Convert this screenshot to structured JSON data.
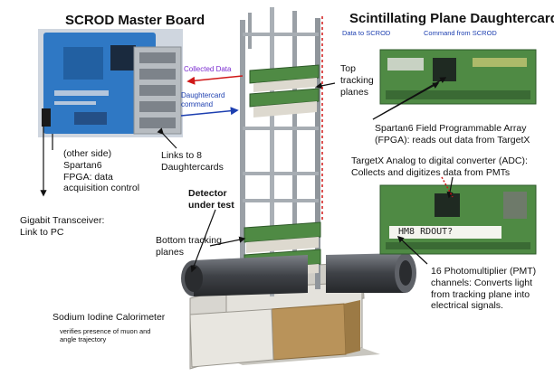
{
  "titles": {
    "master_board": "SCROD Master Board",
    "daughtercard": "Scintillating Plane Daughtercard"
  },
  "labels": {
    "data_to_scrod": "Data to SCROD",
    "command_from_scrod": "Command from SCROD",
    "collected_data": "Collected Data",
    "daughtercard_command": "Daughtercard\ncommand",
    "other_side": "(other side)\nSpartan6\nFPGA: data\nacquisition control",
    "gigabit": "Gigabit Transceiver:\nLink to PC",
    "links": "Links to 8\nDaughtercards",
    "top_planes": "Top\ntracking\nplanes",
    "detector": "Detector\nunder test",
    "bottom_planes": "Bottom tracking\nplanes",
    "spartan6": "Spartan6 Field Programmable Array\n(FPGA): reads out data from TargetX",
    "targetx": "TargetX Analog to digital converter (ADC):\nCollects and digitizes data from PMTs",
    "pmt": "16 Photomultiplier (PMT)\nchannels: Converts light\nfrom tracking plane into\nelectrical signals.",
    "calorimeter": "Sodium Iodine Calorimeter",
    "calorimeter_note": "verifies presence of muon and\nangle trajectory",
    "board_silkscreen": "HM8 RDOUT?"
  },
  "colors": {
    "pcb_blue": "#2f78c4",
    "pcb_green": "#4f8a44",
    "frame_gray": "#9aa0a6",
    "base_gray": "#d8d6d0",
    "calorimeter_wood": "#b9935a",
    "pipe_dark": "#4a4d52",
    "arrow_red": "#d01818",
    "arrow_blue": "#1d3fb0",
    "text_blue": "#1d3fb0",
    "text_purple": "#7a2bd0"
  }
}
